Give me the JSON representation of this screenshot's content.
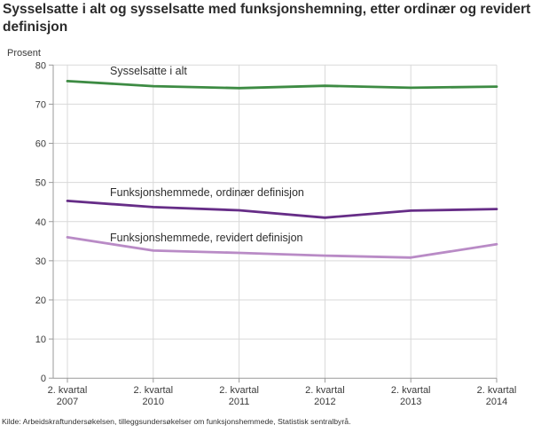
{
  "header": {
    "title": "Sysselsatte i alt og sysselsatte med funksjonshemning, etter ordinær og revidert definisjon"
  },
  "chart_data": {
    "type": "line",
    "title": "Sysselsatte i alt og sysselsatte med funksjonshemning, etter ordinær og revidert definisjon",
    "unit_label": "Prosent",
    "categories": [
      "2. kvartal 2007",
      "2. kvartal 2010",
      "2. kvartal 2011",
      "2. kvartal 2012",
      "2. kvartal 2013",
      "2. kvartal 2014"
    ],
    "series": [
      {
        "name": "Sysselsatte i alt",
        "color": "#3d8b43",
        "values": [
          75.9,
          74.6,
          74.1,
          74.7,
          74.2,
          74.5
        ]
      },
      {
        "name": "Funksjonshemmede, ordinær definisjon",
        "color": "#662d87",
        "values": [
          45.3,
          43.7,
          42.9,
          41.0,
          42.8,
          43.2
        ]
      },
      {
        "name": "Funksjonshemmede, revidert definisjon",
        "color": "#b98bc6",
        "values": [
          36.0,
          32.6,
          32.0,
          31.3,
          30.8,
          34.2
        ]
      }
    ],
    "ylim": [
      0,
      80
    ],
    "ytick_step": 10,
    "grid": true,
    "legend_position": "inline-labels",
    "colors": {
      "grid": "#d9d9d9",
      "axis": "#9a9a9a",
      "text": "#3a3a3a"
    }
  },
  "footer": {
    "source": "Kilde: Arbeidskraftundersøkelsen, tilleggsundersøkelser om funksjonshemmede, Statistisk sentralbyrå."
  }
}
